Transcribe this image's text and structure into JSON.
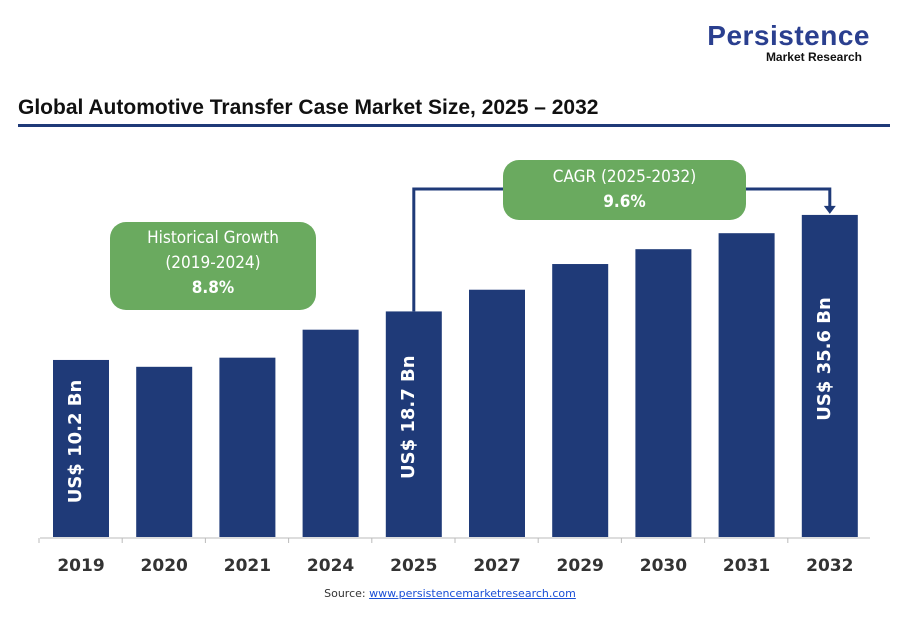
{
  "logo": {
    "brand": "Persistence",
    "sub": "Market Research"
  },
  "chart_data": {
    "type": "bar",
    "title": "Global Automotive Transfer Case Market Size, 2025 – 2032",
    "categories": [
      "2019",
      "2020",
      "2021",
      "2024",
      "2025",
      "2027",
      "2029",
      "2030",
      "2031",
      "2032"
    ],
    "values": [
      10.2,
      9.0,
      10.6,
      15.5,
      18.7,
      22.5,
      27.0,
      29.6,
      32.4,
      35.6
    ],
    "unit": "US$ Bn",
    "data_labels": {
      "0": "US$ 10.2 Bn",
      "4": "US$ 18.7 Bn",
      "9": "US$ 35.6 Bn"
    },
    "bar_color": "#1f3a78",
    "grid": false,
    "annotations": {
      "historical": {
        "line1": "Historical Growth",
        "line2": "(2019-2024)",
        "value": "8.8%"
      },
      "cagr": {
        "line1": "CAGR (2025-2032)",
        "value": "9.6%"
      },
      "box_color": "#6aaa5f"
    }
  },
  "source": {
    "label": "Source: ",
    "link": "www.persistencemarketresearch.com"
  }
}
